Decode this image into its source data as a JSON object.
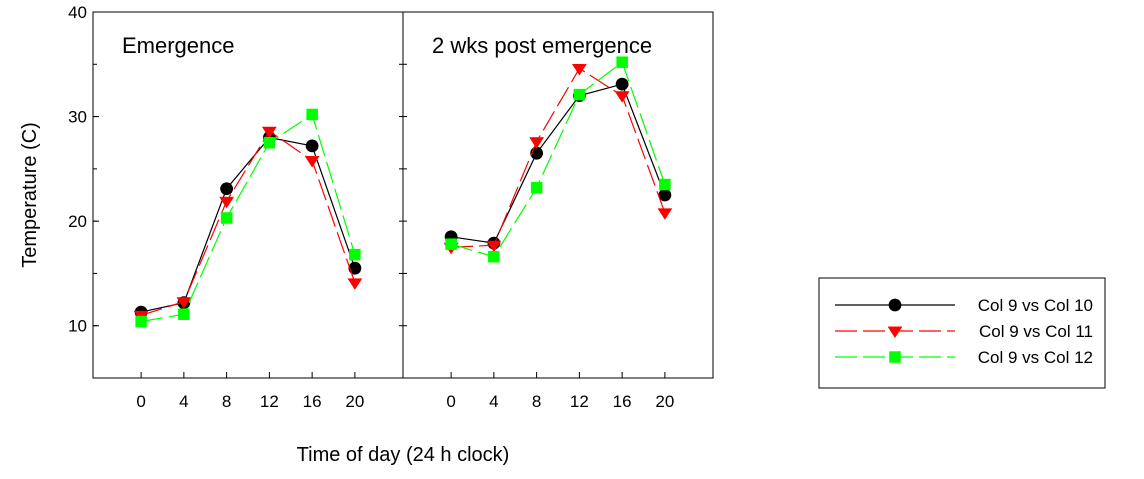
{
  "chart_data": {
    "type": "line",
    "ylabel": "Temperature (C)",
    "xlabel": "Time of day (24 h clock)",
    "ylim": [
      5,
      40
    ],
    "xlim": [
      -4.5,
      24.5
    ],
    "y_ticks": [
      10,
      20,
      30,
      40
    ],
    "x_ticks": [
      0,
      4,
      8,
      12,
      16,
      20
    ],
    "legend_position": "bottom-right",
    "grid": false,
    "panels": [
      {
        "title": "Emergence",
        "x": [
          0,
          4,
          8,
          12,
          16,
          20
        ],
        "series": [
          {
            "name": "Col 9 vs Col 10",
            "values": [
              11.3,
              12.2,
              23.1,
              28.0,
              27.2,
              15.5
            ]
          },
          {
            "name": "Col 9 vs Col 11",
            "values": [
              11.0,
              12.3,
              21.9,
              28.6,
              25.8,
              14.1
            ]
          },
          {
            "name": "Col 9 vs Col 12",
            "values": [
              10.4,
              11.1,
              20.3,
              27.5,
              30.2,
              16.8
            ]
          }
        ]
      },
      {
        "title": "2 wks post emergence",
        "x": [
          0,
          4,
          8,
          12,
          16,
          20
        ],
        "series": [
          {
            "name": "Col 9 vs Col 10",
            "values": [
              18.5,
              17.9,
              26.5,
              32.0,
              33.1,
              22.5
            ]
          },
          {
            "name": "Col 9 vs Col 11",
            "values": [
              17.5,
              17.7,
              27.6,
              34.6,
              32.0,
              20.8
            ]
          },
          {
            "name": "Col 9 vs Col 12",
            "values": [
              17.8,
              16.6,
              23.2,
              32.1,
              35.2,
              23.5
            ]
          }
        ]
      }
    ],
    "series_styles": [
      {
        "name": "Col 9 vs Col 10",
        "color": "#000000",
        "marker": "circle",
        "dash": "solid"
      },
      {
        "name": "Col 9 vs Col 11",
        "color": "#ff0000",
        "marker": "triangle-down",
        "dash": "long-dash"
      },
      {
        "name": "Col 9 vs Col 12",
        "color": "#00ff00",
        "marker": "square",
        "dash": "long-dash"
      }
    ]
  }
}
